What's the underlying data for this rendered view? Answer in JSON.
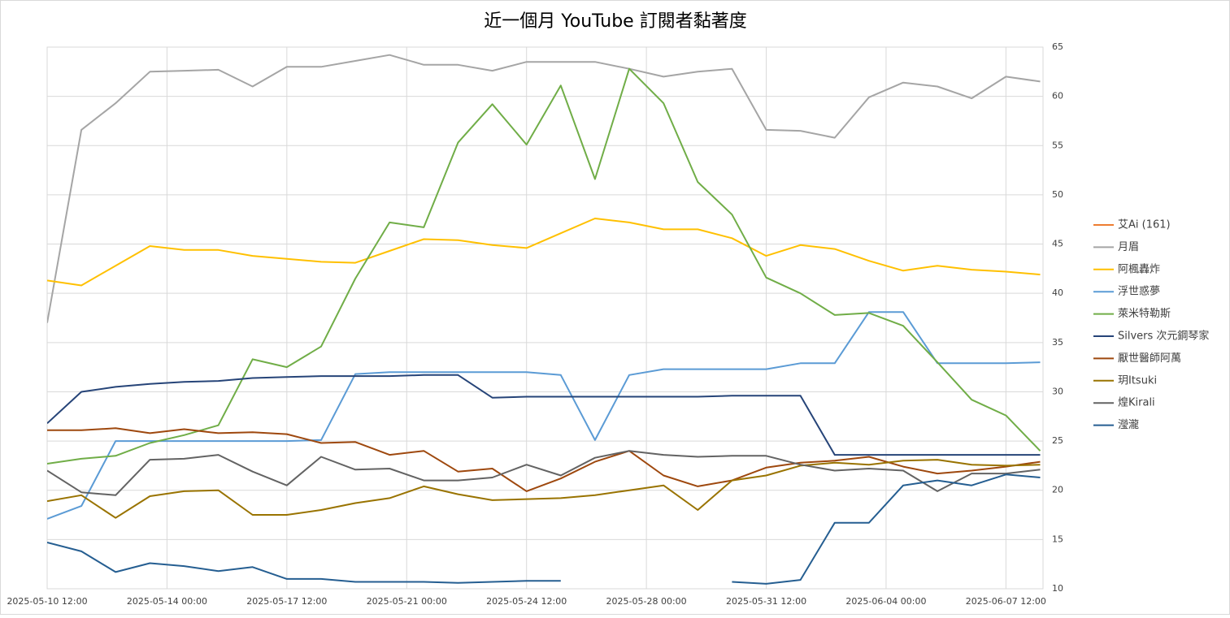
{
  "chart_data": {
    "type": "line",
    "title": "近一個月 YouTube 訂閱者黏著度",
    "x": [
      "2025-05-10 12:00",
      "2025-05-11 12:00",
      "2025-05-12 12:00",
      "2025-05-13 12:00",
      "2025-05-14 12:00",
      "2025-05-15 12:00",
      "2025-05-16 12:00",
      "2025-05-17 12:00",
      "2025-05-18 12:00",
      "2025-05-19 12:00",
      "2025-05-20 12:00",
      "2025-05-21 12:00",
      "2025-05-22 12:00",
      "2025-05-23 12:00",
      "2025-05-24 12:00",
      "2025-05-25 12:00",
      "2025-05-26 12:00",
      "2025-05-27 12:00",
      "2025-05-28 12:00",
      "2025-05-29 12:00",
      "2025-05-30 12:00",
      "2025-05-31 12:00",
      "2025-06-01 12:00",
      "2025-06-02 12:00",
      "2025-06-03 12:00",
      "2025-06-04 12:00",
      "2025-06-05 12:00",
      "2025-06-06 12:00",
      "2025-06-07 12:00",
      "2025-06-08 12:00"
    ],
    "xlim": [
      "2025-05-10 12:00",
      "2025-06-08 14:00"
    ],
    "xticks": [
      "2025-05-10 12:00",
      "2025-05-14 00:00",
      "2025-05-17 12:00",
      "2025-05-21 00:00",
      "2025-05-24 12:00",
      "2025-05-28 00:00",
      "2025-05-31 12:00",
      "2025-06-04 00:00",
      "2025-06-07 12:00"
    ],
    "ylim": [
      10,
      65
    ],
    "yticks": [
      10,
      15,
      20,
      25,
      30,
      35,
      40,
      45,
      50,
      55,
      60,
      65
    ],
    "grid": true,
    "legend": "right",
    "series": [
      {
        "name": "艾Ai (161)",
        "color": "#ed7d31",
        "values": [
          null,
          null,
          null,
          null,
          null,
          null,
          null,
          null,
          null,
          null,
          null,
          null,
          null,
          null,
          null,
          null,
          null,
          null,
          null,
          null,
          null,
          null,
          null,
          null,
          null,
          null,
          null,
          null,
          null,
          null
        ]
      },
      {
        "name": "月眉",
        "color": "#a5a5a5",
        "values": [
          37,
          56.6,
          59.3,
          62.5,
          62.6,
          62.7,
          61,
          63,
          63,
          63.6,
          64.2,
          63.2,
          63.2,
          62.6,
          63.5,
          63.5,
          63.5,
          62.8,
          62,
          62.5,
          62.8,
          56.6,
          56.5,
          55.8,
          59.9,
          61.4,
          61,
          59.8,
          62,
          61.5
        ]
      },
      {
        "name": "阿楓轟炸",
        "color": "#ffc000",
        "values": [
          41.3,
          40.8,
          42.8,
          44.8,
          44.4,
          44.4,
          43.8,
          43.5,
          43.2,
          43.1,
          44.3,
          45.5,
          45.4,
          44.9,
          44.6,
          46.1,
          47.6,
          47.2,
          46.5,
          46.5,
          45.6,
          43.8,
          44.9,
          44.5,
          43.3,
          42.3,
          42.8,
          42.4,
          42.2,
          41.9
        ]
      },
      {
        "name": "浮世惑夢",
        "color": "#5b9bd5",
        "values": [
          17.1,
          18.4,
          25,
          25,
          25,
          25,
          25,
          25,
          25.1,
          31.8,
          32,
          32,
          32,
          32,
          32,
          31.7,
          25.1,
          31.7,
          32.3,
          32.3,
          32.3,
          32.3,
          32.9,
          32.9,
          38.1,
          38.1,
          32.9,
          32.9,
          32.9,
          33
        ]
      },
      {
        "name": "萊米特勒斯",
        "color": "#70ad47",
        "values": [
          22.7,
          23.2,
          23.5,
          24.8,
          25.6,
          26.6,
          33.3,
          32.5,
          34.6,
          41.5,
          47.2,
          46.7,
          55.3,
          59.2,
          55.1,
          61.1,
          51.6,
          62.8,
          59.3,
          51.3,
          48,
          41.6,
          40,
          37.8,
          38,
          36.7,
          33,
          29.2,
          27.6,
          24
        ]
      },
      {
        "name": "Silvers 次元鋼琴家",
        "color": "#264478",
        "values": [
          26.8,
          30,
          30.5,
          30.8,
          31,
          31.1,
          31.4,
          31.5,
          31.6,
          31.6,
          31.6,
          31.7,
          31.7,
          29.4,
          29.5,
          29.5,
          29.5,
          29.5,
          29.5,
          29.5,
          29.6,
          29.6,
          29.6,
          23.6,
          23.6,
          23.6,
          23.6,
          23.6,
          23.6,
          23.6
        ]
      },
      {
        "name": "厭世醫師阿萬",
        "color": "#9e480e",
        "values": [
          26.1,
          26.1,
          26.3,
          25.8,
          26.2,
          25.8,
          25.9,
          25.7,
          24.8,
          24.9,
          23.6,
          24,
          21.9,
          22.2,
          19.9,
          21.2,
          22.9,
          24,
          21.5,
          20.4,
          21,
          22.3,
          22.8,
          23,
          23.4,
          22.4,
          21.7,
          22,
          22.4,
          22.9
        ]
      },
      {
        "name": "玥Itsuki",
        "color": "#997300",
        "values": [
          18.9,
          19.5,
          17.2,
          19.4,
          19.9,
          20,
          17.5,
          17.5,
          18,
          18.7,
          19.2,
          20.4,
          19.6,
          19,
          19.1,
          19.2,
          19.5,
          20,
          20.5,
          18,
          21,
          21.5,
          22.5,
          22.8,
          22.6,
          23,
          23.1,
          22.6,
          22.5,
          22.6
        ]
      },
      {
        "name": "煌Kirali",
        "color": "#636363",
        "values": [
          22,
          19.8,
          19.5,
          23.1,
          23.2,
          23.6,
          21.9,
          20.5,
          23.4,
          22.1,
          22.2,
          21,
          21,
          21.3,
          22.6,
          21.5,
          23.3,
          24,
          23.6,
          23.4,
          23.5,
          23.5,
          22.6,
          22,
          22.2,
          22,
          19.9,
          21.7,
          21.7,
          22.1
        ]
      },
      {
        "name": "瀅瀧",
        "color": "#255e91",
        "values": [
          14.7,
          13.8,
          11.7,
          12.6,
          12.3,
          11.8,
          12.2,
          11,
          11,
          10.7,
          10.7,
          10.7,
          10.6,
          10.7,
          10.8,
          10.8,
          null,
          null,
          null,
          null,
          10.7,
          10.5,
          10.9,
          16.7,
          16.7,
          20.5,
          21,
          20.5,
          21.6,
          21.3
        ]
      }
    ]
  }
}
